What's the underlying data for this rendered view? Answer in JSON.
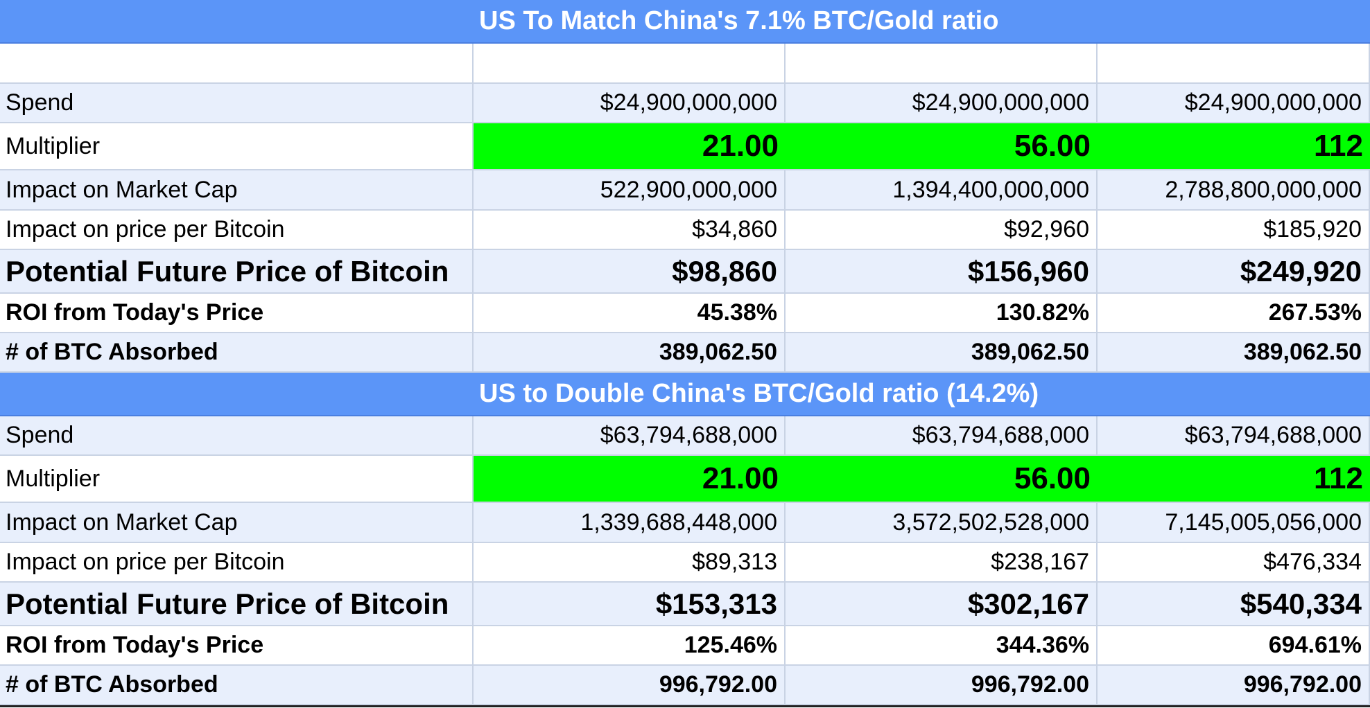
{
  "sections": [
    {
      "title": "US To Match China's 7.1% BTC/Gold ratio",
      "rows": [
        {
          "label": "Spend",
          "values": [
            "$24,900,000,000",
            "$24,900,000,000",
            "$24,900,000,000"
          ]
        },
        {
          "label": "Multiplier",
          "values": [
            "21.00",
            "56.00",
            "112"
          ]
        },
        {
          "label": "Impact on Market Cap",
          "values": [
            "522,900,000,000",
            "1,394,400,000,000",
            "2,788,800,000,000"
          ]
        },
        {
          "label": "Impact on price per Bitcoin",
          "values": [
            "$34,860",
            "$92,960",
            "$185,920"
          ]
        },
        {
          "label": "Potential Future Price of Bitcoin",
          "values": [
            "$98,860",
            "$156,960",
            "$249,920"
          ]
        },
        {
          "label": "ROI from Today's Price",
          "values": [
            "45.38%",
            "130.82%",
            "267.53%"
          ]
        },
        {
          "label": "# of BTC Absorbed",
          "values": [
            "389,062.50",
            "389,062.50",
            "389,062.50"
          ]
        }
      ]
    },
    {
      "title": "US to Double China's BTC/Gold ratio (14.2%)",
      "rows": [
        {
          "label": "Spend",
          "values": [
            "$63,794,688,000",
            "$63,794,688,000",
            "$63,794,688,000"
          ]
        },
        {
          "label": "Multiplier",
          "values": [
            "21.00",
            "56.00",
            "112"
          ]
        },
        {
          "label": "Impact on Market Cap",
          "values": [
            "1,339,688,448,000",
            "3,572,502,528,000",
            "7,145,005,056,000"
          ]
        },
        {
          "label": "Impact on price per Bitcoin",
          "values": [
            "$89,313",
            "$238,167",
            "$476,334"
          ]
        },
        {
          "label": "Potential Future Price of Bitcoin",
          "values": [
            "$153,313",
            "$302,167",
            "$540,334"
          ]
        },
        {
          "label": "ROI from Today's Price",
          "values": [
            "125.46%",
            "344.36%",
            "694.61%"
          ]
        },
        {
          "label": "# of BTC Absorbed",
          "values": [
            "996,792.00",
            "996,792.00",
            "996,792.00"
          ]
        }
      ]
    }
  ]
}
